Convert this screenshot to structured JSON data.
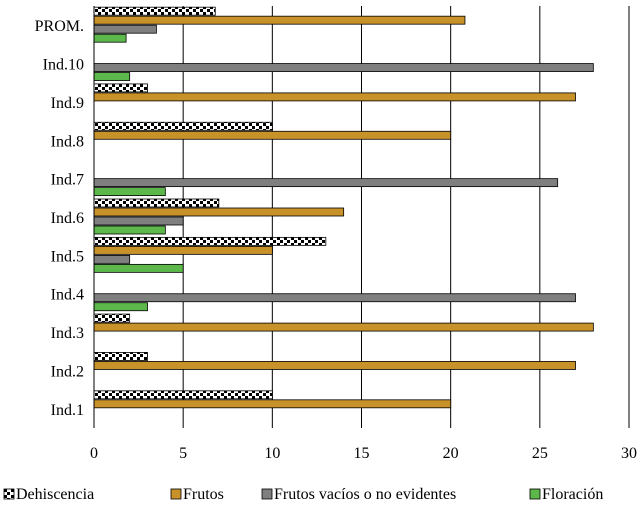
{
  "chart_data": {
    "type": "bar",
    "orientation": "horizontal",
    "categories": [
      "Ind.1",
      "Ind.2",
      "Ind.3",
      "Ind.4",
      "Ind.5",
      "Ind.6",
      "Ind.7",
      "Ind.8",
      "Ind.9",
      "Ind.10",
      "PROM."
    ],
    "series": [
      {
        "name": "Dehiscencia",
        "color": "#ffffff",
        "pattern": "checker-black-white",
        "values": [
          10,
          3,
          2,
          0,
          13,
          7,
          0,
          10,
          3,
          0,
          6.8
        ]
      },
      {
        "name": "Frutos",
        "color": "#c8922a",
        "values": [
          20,
          27,
          28,
          0,
          10,
          14,
          0,
          20,
          27,
          0,
          20.8
        ]
      },
      {
        "name": "Frutos vacíos o no evidentes",
        "color": "#7f7f7f",
        "values": [
          0,
          0,
          0,
          27,
          2,
          5,
          26,
          0,
          0,
          28,
          3.5
        ]
      },
      {
        "name": "Floración",
        "color": "#5cb84a",
        "values": [
          0,
          0,
          0,
          3,
          5,
          4,
          4,
          0,
          0,
          2,
          1.8
        ]
      }
    ],
    "xlim": [
      0,
      30
    ],
    "xticks": [
      "0",
      "5",
      "10",
      "15",
      "20",
      "25",
      "30"
    ],
    "grid": "vertical",
    "legend": "bottom"
  }
}
